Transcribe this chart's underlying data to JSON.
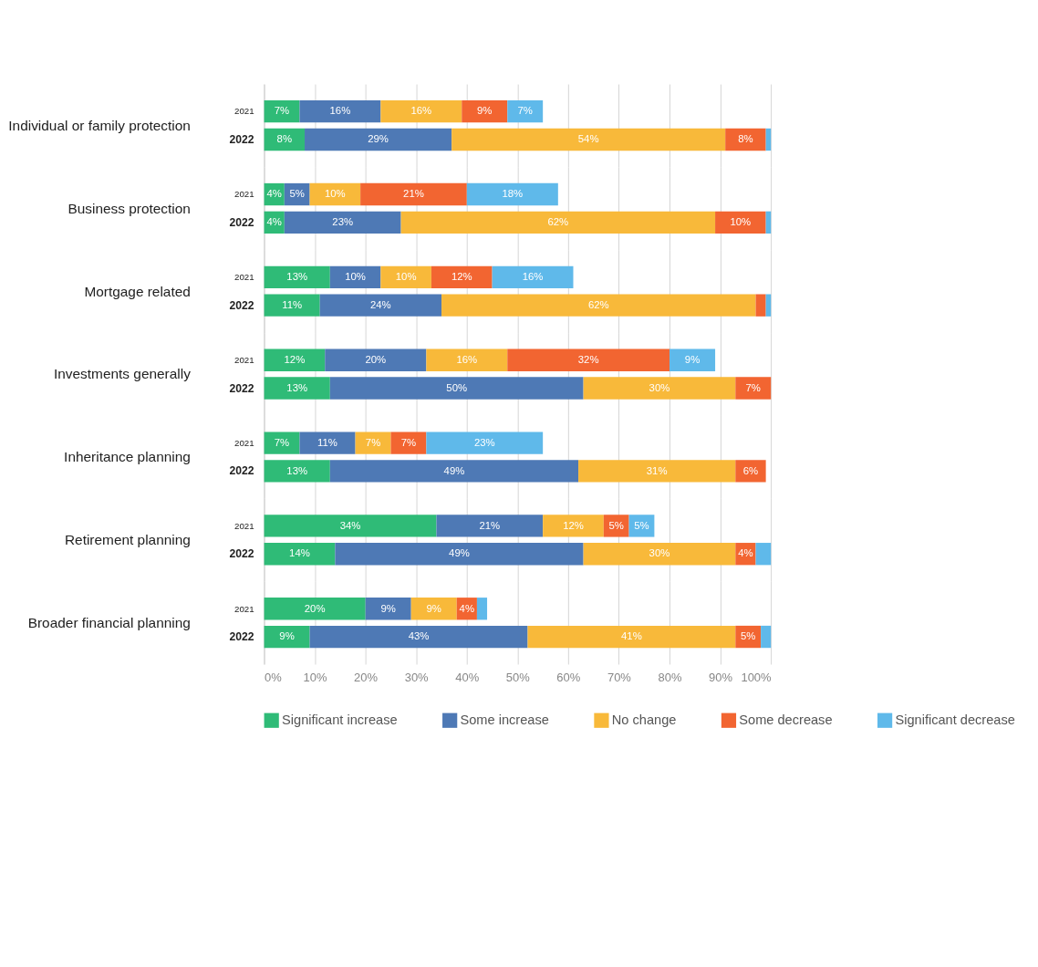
{
  "chart_data": [
    {
      "type": "bar",
      "orientation": "horizontal",
      "stacked": true,
      "title": "Individual or family protection",
      "categories": [
        "2021",
        "2022"
      ],
      "xlim": [
        0,
        100
      ],
      "xticks": [
        {
          "value": 0,
          "label": null
        },
        {
          "value": 10,
          "label": null
        },
        {
          "value": 20,
          "label": null
        },
        {
          "value": 30,
          "label": null
        },
        {
          "value": 40,
          "label": null
        },
        {
          "value": 50,
          "label": null
        },
        {
          "value": 60,
          "label": null
        },
        {
          "value": 70,
          "label": null
        },
        {
          "value": 80,
          "label": null
        },
        {
          "value": 90,
          "label": null
        },
        {
          "value": 100,
          "label": null
        }
      ],
      "grid": "x",
      "tick_labels": "y",
      "series": [
        {
          "color": "#2fbb77",
          "values": [
            7,
            8
          ],
          "value_labels": [
            "7%",
            "8%"
          ]
        },
        {
          "color": "#4e79b5",
          "values": [
            16,
            29
          ],
          "value_labels": [
            "16%",
            "29%"
          ]
        },
        {
          "color": "#f8b93a",
          "values": [
            16,
            54
          ],
          "value_labels": [
            "16%",
            "54%"
          ]
        },
        {
          "color": "#f26531",
          "values": [
            9,
            8
          ],
          "value_labels": [
            "9%",
            "8%"
          ]
        },
        {
          "color": "#5fb9ea",
          "values": [
            7,
            1
          ],
          "value_labels": [
            "7%",
            null
          ]
        }
      ]
    },
    {
      "type": "bar",
      "orientation": "horizontal",
      "stacked": true,
      "title": "Business protection",
      "categories": [
        "2021",
        "2022"
      ],
      "xlim": [
        0,
        100
      ],
      "xticks": [
        {
          "value": 0,
          "label": null
        },
        {
          "value": 10,
          "label": null
        },
        {
          "value": 20,
          "label": null
        },
        {
          "value": 30,
          "label": null
        },
        {
          "value": 40,
          "label": null
        },
        {
          "value": 50,
          "label": null
        },
        {
          "value": 60,
          "label": null
        },
        {
          "value": 70,
          "label": null
        },
        {
          "value": 80,
          "label": null
        },
        {
          "value": 90,
          "label": null
        },
        {
          "value": 100,
          "label": null
        }
      ],
      "grid": "x",
      "tick_labels": "y",
      "series": [
        {
          "color": "#2fbb77",
          "values": [
            4,
            4
          ],
          "value_labels": [
            "4%",
            "4%"
          ]
        },
        {
          "color": "#4e79b5",
          "values": [
            5,
            23
          ],
          "value_labels": [
            "5%",
            "23%"
          ]
        },
        {
          "color": "#f8b93a",
          "values": [
            10,
            62
          ],
          "value_labels": [
            "10%",
            "62%"
          ]
        },
        {
          "color": "#f26531",
          "values": [
            21,
            10
          ],
          "value_labels": [
            "21%",
            "10%"
          ]
        },
        {
          "color": "#5fb9ea",
          "values": [
            18,
            1
          ],
          "value_labels": [
            "18%",
            null
          ]
        }
      ]
    },
    {
      "type": "bar",
      "orientation": "horizontal",
      "stacked": true,
      "title": "Mortgage related",
      "categories": [
        "2021",
        "2022"
      ],
      "xlim": [
        0,
        100
      ],
      "xticks": [
        {
          "value": 0,
          "label": null
        },
        {
          "value": 10,
          "label": null
        },
        {
          "value": 20,
          "label": null
        },
        {
          "value": 30,
          "label": null
        },
        {
          "value": 40,
          "label": null
        },
        {
          "value": 50,
          "label": null
        },
        {
          "value": 60,
          "label": null
        },
        {
          "value": 70,
          "label": null
        },
        {
          "value": 80,
          "label": null
        },
        {
          "value": 90,
          "label": null
        },
        {
          "value": 100,
          "label": null
        }
      ],
      "grid": "x",
      "tick_labels": "y",
      "series": [
        {
          "color": "#2fbb77",
          "values": [
            13,
            11
          ],
          "value_labels": [
            "13%",
            "11%"
          ]
        },
        {
          "color": "#4e79b5",
          "values": [
            10,
            24
          ],
          "value_labels": [
            "10%",
            "24%"
          ]
        },
        {
          "color": "#f8b93a",
          "values": [
            10,
            62
          ],
          "value_labels": [
            "10%",
            "62%"
          ]
        },
        {
          "color": "#f26531",
          "values": [
            12,
            2
          ],
          "value_labels": [
            "12%",
            null
          ]
        },
        {
          "color": "#5fb9ea",
          "values": [
            16,
            1
          ],
          "value_labels": [
            "16%",
            null
          ]
        }
      ]
    },
    {
      "type": "bar",
      "orientation": "horizontal",
      "stacked": true,
      "title": "Investments generally",
      "categories": [
        "2021",
        "2022"
      ],
      "xlim": [
        0,
        100
      ],
      "xticks": [
        {
          "value": 0,
          "label": null
        },
        {
          "value": 10,
          "label": null
        },
        {
          "value": 20,
          "label": null
        },
        {
          "value": 30,
          "label": null
        },
        {
          "value": 40,
          "label": null
        },
        {
          "value": 50,
          "label": null
        },
        {
          "value": 60,
          "label": null
        },
        {
          "value": 70,
          "label": null
        },
        {
          "value": 80,
          "label": null
        },
        {
          "value": 90,
          "label": null
        },
        {
          "value": 100,
          "label": null
        }
      ],
      "grid": "x",
      "tick_labels": "y",
      "series": [
        {
          "color": "#2fbb77",
          "values": [
            12,
            13
          ],
          "value_labels": [
            "12%",
            "13%"
          ]
        },
        {
          "color": "#4e79b5",
          "values": [
            20,
            50
          ],
          "value_labels": [
            "20%",
            "50%"
          ]
        },
        {
          "color": "#f8b93a",
          "values": [
            16,
            30
          ],
          "value_labels": [
            "16%",
            "30%"
          ]
        },
        {
          "color": "#f26531",
          "values": [
            32,
            7
          ],
          "value_labels": [
            "32%",
            "7%"
          ]
        },
        {
          "color": "#5fb9ea",
          "values": [
            9,
            null
          ],
          "value_labels": [
            "9%",
            null
          ]
        }
      ]
    },
    {
      "type": "bar",
      "orientation": "horizontal",
      "stacked": true,
      "title": "Inheritance planning",
      "categories": [
        "2021",
        "2022"
      ],
      "xlim": [
        0,
        100
      ],
      "xticks": [
        {
          "value": 0,
          "label": null
        },
        {
          "value": 10,
          "label": null
        },
        {
          "value": 20,
          "label": null
        },
        {
          "value": 30,
          "label": null
        },
        {
          "value": 40,
          "label": null
        },
        {
          "value": 50,
          "label": null
        },
        {
          "value": 60,
          "label": null
        },
        {
          "value": 70,
          "label": null
        },
        {
          "value": 80,
          "label": null
        },
        {
          "value": 90,
          "label": null
        },
        {
          "value": 100,
          "label": null
        }
      ],
      "grid": "x",
      "tick_labels": "y",
      "series": [
        {
          "color": "#2fbb77",
          "values": [
            7,
            13
          ],
          "value_labels": [
            "7%",
            "13%"
          ]
        },
        {
          "color": "#4e79b5",
          "values": [
            11,
            49
          ],
          "value_labels": [
            "11%",
            "49%"
          ]
        },
        {
          "color": "#f8b93a",
          "values": [
            7,
            31
          ],
          "value_labels": [
            "7%",
            "31%"
          ]
        },
        {
          "color": "#f26531",
          "values": [
            7,
            6
          ],
          "value_labels": [
            "7%",
            "6%"
          ]
        },
        {
          "color": "#5fb9ea",
          "values": [
            23,
            null
          ],
          "value_labels": [
            "23%",
            null
          ]
        }
      ]
    },
    {
      "type": "bar",
      "orientation": "horizontal",
      "stacked": true,
      "title": "Retirement planning",
      "categories": [
        "2021",
        "2022"
      ],
      "xlim": [
        0,
        100
      ],
      "xticks": [
        {
          "value": 0,
          "label": null
        },
        {
          "value": 10,
          "label": null
        },
        {
          "value": 20,
          "label": null
        },
        {
          "value": 30,
          "label": null
        },
        {
          "value": 40,
          "label": null
        },
        {
          "value": 50,
          "label": null
        },
        {
          "value": 60,
          "label": null
        },
        {
          "value": 70,
          "label": null
        },
        {
          "value": 80,
          "label": null
        },
        {
          "value": 90,
          "label": null
        },
        {
          "value": 100,
          "label": null
        }
      ],
      "grid": "x",
      "tick_labels": "y",
      "series": [
        {
          "color": "#2fbb77",
          "values": [
            34,
            14
          ],
          "value_labels": [
            "34%",
            "14%"
          ]
        },
        {
          "color": "#4e79b5",
          "values": [
            21,
            49
          ],
          "value_labels": [
            "21%",
            "49%"
          ]
        },
        {
          "color": "#f8b93a",
          "values": [
            12,
            30
          ],
          "value_labels": [
            "12%",
            "30%"
          ]
        },
        {
          "color": "#f26531",
          "values": [
            5,
            4
          ],
          "value_labels": [
            "5%",
            "4%"
          ]
        },
        {
          "color": "#5fb9ea",
          "values": [
            5,
            3
          ],
          "value_labels": [
            "5%",
            null
          ]
        }
      ]
    },
    {
      "type": "bar",
      "orientation": "horizontal",
      "stacked": true,
      "title": "Broader financial planning",
      "categories": [
        "2021",
        "2022"
      ],
      "xlim": [
        0,
        100
      ],
      "xticks": [
        {
          "value": 0,
          "label": "0%"
        },
        {
          "value": 10,
          "label": "10%"
        },
        {
          "value": 20,
          "label": "20%"
        },
        {
          "value": 30,
          "label": "30%"
        },
        {
          "value": 40,
          "label": "40%"
        },
        {
          "value": 50,
          "label": "50%"
        },
        {
          "value": 60,
          "label": "60%"
        },
        {
          "value": 70,
          "label": "70%"
        },
        {
          "value": 80,
          "label": "80%"
        },
        {
          "value": 90,
          "label": "90%"
        },
        {
          "value": 100,
          "label": "100%"
        }
      ],
      "grid": "x",
      "legend": "bottom",
      "series": [
        {
          "name": "Significant increase",
          "color": "#2fbb77",
          "values": [
            20,
            9
          ],
          "value_labels": [
            "20%",
            "9%"
          ]
        },
        {
          "name": "Some increase",
          "color": "#4e79b5",
          "values": [
            9,
            43
          ],
          "value_labels": [
            "9%",
            "43%"
          ]
        },
        {
          "name": "No change",
          "color": "#f8b93a",
          "values": [
            9,
            41
          ],
          "value_labels": [
            "9%",
            "41%"
          ]
        },
        {
          "name": "Some decrease",
          "color": "#f26531",
          "values": [
            4,
            5
          ],
          "value_labels": [
            "4%",
            "5%"
          ]
        },
        {
          "name": "Significant decrease",
          "color": "#5fb9ea",
          "values": [
            2,
            2
          ],
          "value_labels": [
            null,
            null
          ]
        }
      ]
    }
  ]
}
